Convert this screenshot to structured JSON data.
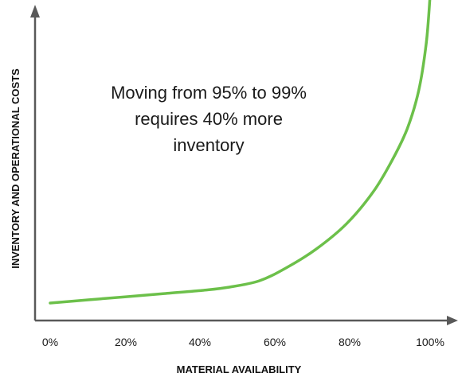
{
  "chart_data": {
    "type": "line",
    "title": "",
    "xlabel": "MATERIAL AVAILABILITY",
    "ylabel": "INVENTORY AND OPERATIONAL COSTS",
    "x_ticks": [
      "0%",
      "20%",
      "40%",
      "60%",
      "80%",
      "100%"
    ],
    "xlim": [
      0,
      100
    ],
    "ylim": [
      0,
      100
    ],
    "grid": false,
    "y_tick_labels_shown": false,
    "annotation": [
      "Moving from 95% to 99%",
      "requires 40% more",
      "inventory"
    ],
    "series": [
      {
        "color": "#6cc04a",
        "x": [
          0,
          10,
          20,
          30,
          40,
          47,
          55,
          62,
          70,
          78,
          85,
          90,
          94,
          97,
          99,
          100
        ],
        "y": [
          3,
          4,
          5,
          6,
          7,
          8,
          10,
          14,
          20,
          28,
          38,
          48,
          58,
          70,
          85,
          100
        ]
      }
    ],
    "axis_color": "#595959"
  }
}
